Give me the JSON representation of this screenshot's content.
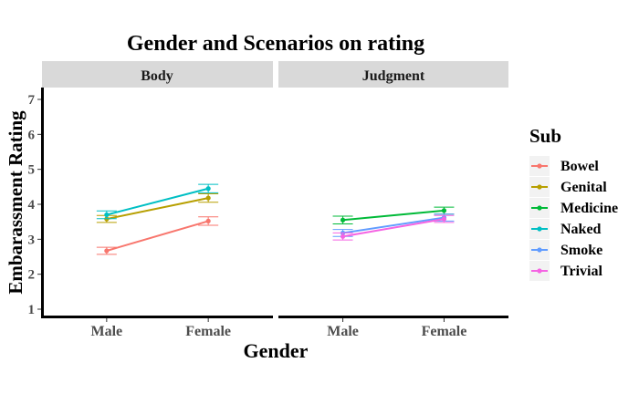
{
  "chart_data": {
    "type": "line",
    "title": "Gender and Scenarios on rating",
    "xlabel": "Gender",
    "ylabel": "Embarassment Rating",
    "categories": [
      "Male",
      "Female"
    ],
    "ylim": [
      0.8,
      7.3
    ],
    "yticks": [
      1,
      2,
      3,
      4,
      5,
      6,
      7
    ],
    "legend": {
      "title": "Sub",
      "position": "right",
      "entries": [
        "Bowel",
        "Genital",
        "Medicine",
        "Naked",
        "Smoke",
        "Trivial"
      ]
    },
    "colors": {
      "Bowel": "#F8766D",
      "Genital": "#B79F00",
      "Medicine": "#00BA38",
      "Naked": "#00BFC4",
      "Smoke": "#619CFF",
      "Trivial": "#F564E3"
    },
    "panels": [
      {
        "name": "Body",
        "series": [
          {
            "name": "Bowel",
            "values": [
              2.67,
              3.52
            ],
            "err": [
              0.1,
              0.12
            ]
          },
          {
            "name": "Genital",
            "values": [
              3.58,
              4.18
            ],
            "err": [
              0.1,
              0.12
            ]
          },
          {
            "name": "Naked",
            "values": [
              3.7,
              4.45
            ],
            "err": [
              0.11,
              0.12
            ]
          }
        ]
      },
      {
        "name": "Judgment",
        "series": [
          {
            "name": "Medicine",
            "values": [
              3.55,
              3.82
            ],
            "err": [
              0.11,
              0.1
            ]
          },
          {
            "name": "Smoke",
            "values": [
              3.18,
              3.62
            ],
            "err": [
              0.1,
              0.1
            ]
          },
          {
            "name": "Trivial",
            "values": [
              3.08,
              3.58
            ],
            "err": [
              0.1,
              0.1
            ]
          }
        ]
      }
    ]
  }
}
